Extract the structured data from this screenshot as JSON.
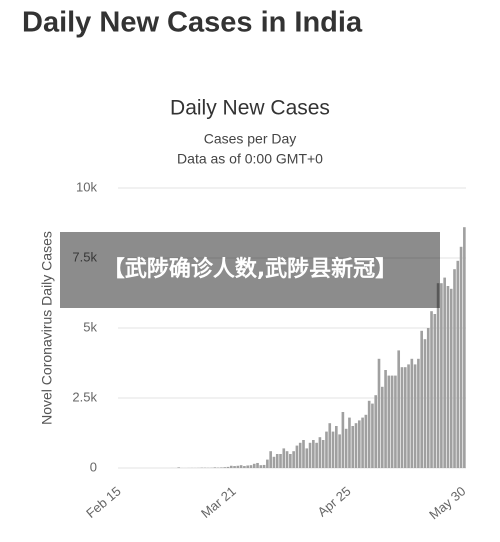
{
  "header": {
    "title": "Daily New Cases in India"
  },
  "banner": {
    "text": "【武陟确诊人数,武陟县新冠】"
  },
  "chart_data": {
    "type": "bar",
    "title": "Daily New Cases",
    "subtitle": "Cases per Day",
    "note": "Data as of 0:00 GMT+0",
    "y_label": "Novel Coronavirus Daily Cases",
    "color": "#a0a0a0",
    "grid": true,
    "ylim": [
      0,
      10000
    ],
    "yticks": [
      0,
      {
        "value": 2500,
        "label": "2.5k"
      },
      {
        "value": 5000,
        "label": "5k"
      },
      {
        "value": 7500,
        "label": "7.5k"
      },
      {
        "value": 10000,
        "label": "10k"
      }
    ],
    "categories": [
      "Feb 15",
      null,
      null,
      null,
      null,
      null,
      null,
      null,
      null,
      null,
      null,
      null,
      null,
      null,
      null,
      null,
      null,
      null,
      null,
      null,
      null,
      null,
      null,
      null,
      null,
      null,
      null,
      null,
      null,
      null,
      null,
      null,
      null,
      null,
      null,
      "Mar 21",
      null,
      null,
      null,
      null,
      null,
      null,
      null,
      null,
      null,
      null,
      null,
      null,
      null,
      null,
      null,
      null,
      null,
      null,
      null,
      null,
      null,
      null,
      null,
      null,
      null,
      null,
      null,
      null,
      null,
      null,
      null,
      null,
      null,
      null,
      "Apr 25",
      null,
      null,
      null,
      null,
      null,
      null,
      null,
      null,
      null,
      null,
      null,
      null,
      null,
      null,
      null,
      null,
      null,
      null,
      null,
      null,
      null,
      null,
      null,
      null,
      null,
      null,
      null,
      null,
      null,
      null,
      null,
      null,
      null,
      null,
      "May 30"
    ],
    "values": [
      0,
      0,
      0,
      0,
      0,
      0,
      0,
      0,
      0,
      0,
      0,
      0,
      0,
      0,
      0,
      0,
      2,
      1,
      22,
      2,
      1,
      3,
      5,
      4,
      6,
      12,
      11,
      8,
      9,
      23,
      14,
      20,
      28,
      40,
      80,
      70,
      80,
      100,
      70,
      90,
      100,
      150,
      180,
      100,
      110,
      300,
      600,
      400,
      500,
      500,
      700,
      600,
      500,
      600,
      800,
      900,
      1000,
      700,
      900,
      1000,
      900,
      1100,
      1000,
      1300,
      1600,
      1300,
      1500,
      1200,
      2000,
      1400,
      1800,
      1500,
      1600,
      1700,
      1800,
      1900,
      2400,
      2300,
      2600,
      3900,
      2900,
      3500,
      3300,
      3300,
      3300,
      4200,
      3600,
      3600,
      3700,
      3900,
      3700,
      3900,
      4900,
      4600,
      5000,
      5600,
      5500,
      6600,
      6600,
      6800,
      6500,
      6400,
      7100,
      7400,
      7900,
      8600
    ]
  }
}
